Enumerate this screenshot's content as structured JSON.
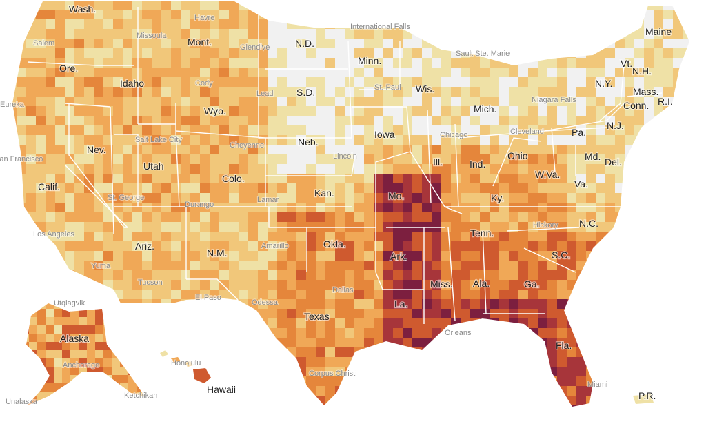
{
  "map": {
    "colors": {
      "none": "#f1f1f1",
      "very_low": "#efe1a6",
      "low": "#f1c77a",
      "moderate": "#f0a857",
      "high": "#e5863b",
      "very_high": "#cf5a2f",
      "severe": "#a7353a",
      "extreme": "#7c1f3f"
    },
    "state_labels": [
      "Wash.",
      "Ore.",
      "Calif.",
      "Nev.",
      "Idaho",
      "Mont.",
      "Wyo.",
      "Utah",
      "Ariz.",
      "Colo.",
      "N.M.",
      "N.D.",
      "S.D.",
      "Neb.",
      "Kan.",
      "Okla.",
      "Texas",
      "Minn.",
      "Iowa",
      "Mo.",
      "Ark.",
      "La.",
      "Wis.",
      "Ill.",
      "Mich.",
      "Ind.",
      "Ohio",
      "Ky.",
      "Tenn.",
      "Miss.",
      "Ala.",
      "Ga.",
      "Fla.",
      "S.C.",
      "N.C.",
      "Va.",
      "W.Va.",
      "Pa.",
      "N.Y.",
      "Md.",
      "Del.",
      "N.J.",
      "Conn.",
      "R.I.",
      "Mass.",
      "Vt.",
      "N.H.",
      "Maine",
      "Alaska",
      "Hawaii",
      "P.R."
    ],
    "city_labels": [
      "Havre",
      "Missoula",
      "Salem",
      "Glendive",
      "International Falls",
      "Sault Ste. Marie",
      "Cody",
      "Lead",
      "St. Paul",
      "Niagara Falls",
      "Eureka",
      "Salt Lake City",
      "Cheyenne",
      "Chicago",
      "Cleveland",
      "San Francisco",
      "Lincoln",
      "Lamar",
      "St. George",
      "Durango",
      "Los Angeles",
      "Amarillo",
      "Hickory",
      "Yuma",
      "Tucson",
      "El Paso",
      "Odessa",
      "Dallas",
      "Utqiagvik",
      "Anchorage",
      "Honolulu",
      "Unalaska",
      "Ketchikan",
      "Corpus Christi",
      "Miami",
      "Orleans"
    ]
  }
}
